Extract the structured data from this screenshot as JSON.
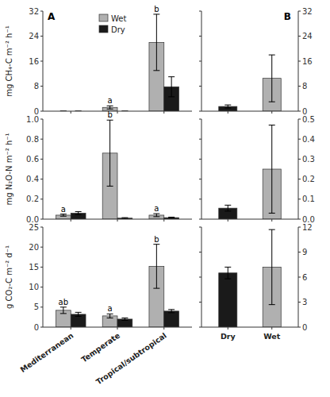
{
  "chart_data": [
    {
      "type": "bar",
      "title": "A",
      "ylabel": "mg CH₄-C m⁻² h⁻¹",
      "categories": [
        null,
        null,
        null
      ],
      "series": [
        {
          "name": "Wet",
          "color": "#b0b0b0",
          "values": [
            0.0,
            1.2,
            22.0
          ],
          "errors": [
            0.0,
            0.5,
            9.0
          ],
          "annotations": [
            null,
            "a",
            "b"
          ]
        },
        {
          "name": "Dry",
          "color": "#1a1a1a",
          "values": [
            0.0,
            0.0,
            7.8
          ],
          "errors": [
            0.0,
            0.0,
            3.2
          ]
        }
      ],
      "ylim": [
        0,
        32
      ],
      "yticks": [
        0,
        8,
        16,
        24,
        32
      ],
      "legend": "upper center",
      "grid": false
    },
    {
      "type": "bar",
      "title": "B",
      "categories": [
        null,
        null
      ],
      "values": [
        1.5,
        10.5
      ],
      "colors": [
        "#1a1a1a",
        "#b0b0b0"
      ],
      "errors": [
        0.5,
        7.5
      ],
      "ylim": [
        0,
        32
      ],
      "yticks": [
        0,
        8,
        16,
        24,
        32
      ],
      "grid": false
    },
    {
      "type": "bar",
      "ylabel": "mg N₂O-N m⁻² h⁻¹",
      "categories": [
        null,
        null,
        null
      ],
      "series": [
        {
          "color": "#b0b0b0",
          "values": [
            0.04,
            0.66,
            0.04
          ],
          "errors": [
            0.01,
            0.33,
            0.015
          ],
          "annotations": [
            "a",
            "b",
            "a"
          ]
        },
        {
          "color": "#1a1a1a",
          "values": [
            0.06,
            0.01,
            0.015
          ],
          "errors": [
            0.015,
            0.005,
            0.005
          ]
        }
      ],
      "ylim": [
        0,
        1.0
      ],
      "yticks": [
        {
          "value": 0,
          "label": "0.0"
        },
        0.2,
        0.4,
        0.6,
        0.8,
        {
          "value": 1,
          "label": "1.0"
        }
      ],
      "grid": false
    },
    {
      "type": "bar",
      "categories": [
        null,
        null
      ],
      "values": [
        0.055,
        0.25
      ],
      "colors": [
        "#1a1a1a",
        "#b0b0b0"
      ],
      "errors": [
        0.015,
        0.22
      ],
      "ylim": [
        0,
        0.5
      ],
      "yticks": [
        {
          "value": 0,
          "label": "0.0"
        },
        0.1,
        0.2,
        0.3,
        0.4,
        0.5
      ],
      "grid": false
    },
    {
      "type": "bar",
      "ylabel": "g CO₂-C m⁻² d⁻¹",
      "categories": [
        "Mediterranean",
        "Temperate",
        "Tropical/subtropical"
      ],
      "series": [
        {
          "color": "#b0b0b0",
          "values": [
            4.2,
            2.8,
            15.2
          ],
          "errors": [
            0.8,
            0.5,
            5.5
          ],
          "annotations": [
            "ab",
            "a",
            "b"
          ]
        },
        {
          "color": "#1a1a1a",
          "values": [
            3.2,
            2.0,
            4.0
          ],
          "errors": [
            0.5,
            0.3,
            0.4
          ]
        }
      ],
      "ylim": [
        0,
        25
      ],
      "yticks": [
        0,
        5,
        10,
        15,
        20,
        25
      ],
      "grid": false
    },
    {
      "type": "bar",
      "categories": [
        "Dry",
        "Wet"
      ],
      "values": [
        6.5,
        7.2
      ],
      "colors": [
        "#1a1a1a",
        "#b0b0b0"
      ],
      "errors": [
        0.7,
        4.5
      ],
      "ylim": [
        0,
        12
      ],
      "yticks": [
        0,
        3,
        6,
        9,
        12
      ],
      "grid": false
    }
  ]
}
